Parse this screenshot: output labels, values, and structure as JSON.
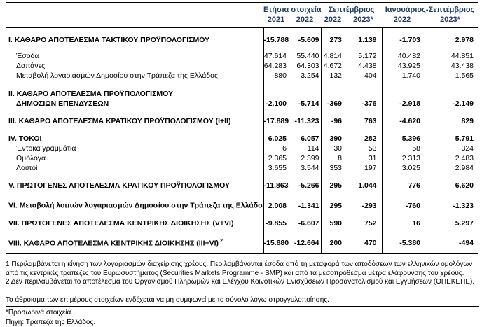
{
  "accent_color": "#1f3864",
  "table": {
    "col_groups": [
      {
        "label": "Ετήσια στοιχεία",
        "years": [
          "2021",
          "2022"
        ]
      },
      {
        "label": "Σεπτέμβριος",
        "years": [
          "2022",
          "2023*"
        ]
      },
      {
        "label": "Ιανουάριος-Σεπτέμβριος",
        "years": [
          "2022",
          "2023*"
        ]
      }
    ],
    "rows": [
      {
        "label": "I. ΚΑΘΑΡΟ ΑΠΟΤΕΛΕΣΜΑ ΤΑΚΤΙΚΟΥ ΠΡΟΫΠΟΛΟΓΙΣΜΟΥ",
        "bold": true,
        "gap": 11,
        "values": [
          "-15.788",
          "-5.609",
          "273",
          "1.139",
          "-1.703",
          "2.978"
        ]
      },
      {
        "label": "Έσοδα",
        "bold": false,
        "indent": true,
        "gap": 10,
        "values": [
          "47.614",
          "55.440",
          "4.814",
          "5.172",
          "40.482",
          "44.851"
        ]
      },
      {
        "label": "Δαπάνες",
        "bold": false,
        "indent": true,
        "values": [
          "64.283",
          "64.303",
          "4.672",
          "4.438",
          "43.925",
          "43.438"
        ]
      },
      {
        "label": "Μεταβολή λογαριασμών Δημοσίου στην Τράπεζα της Ελλάδος",
        "bold": false,
        "indent": true,
        "values": [
          "880",
          "3.254",
          "132",
          "404",
          "1.740",
          "1.565"
        ]
      },
      {
        "label": "II. ΚΑΘΑΡΟ ΑΠΟΤΕΛΕΣΜΑ ΠΡΟΫΠΟΛΟΓΙΣΜΟΥ",
        "bold": true,
        "gap": 13,
        "values": [
          "",
          "",
          "",
          "",
          "",
          ""
        ]
      },
      {
        "label": "ΔΗΜΟΣΙΩΝ ΕΠΕΝΔΥΣΕΩΝ",
        "bold": true,
        "indent": true,
        "values": [
          "-2.100",
          "-5.714",
          "-369",
          "-376",
          "-2.918",
          "-2.149"
        ]
      },
      {
        "label": "III. ΚΑΘΑΡΟ ΑΠΟΤΕΛΕΣΜΑ ΚΡΑΤΙΚΟΥ ΠΡΟΫΠΟΛΟΓΙΣΜΟΥ (I+II)",
        "bold": true,
        "gap": 12,
        "values": [
          "-17.889",
          "-11.323",
          "-96",
          "763",
          "-4.620",
          "829"
        ]
      },
      {
        "label": "IV. ΤΟΚΟΙ",
        "bold": true,
        "gap": 12,
        "values": [
          "6.025",
          "6.057",
          "390",
          "282",
          "5.396",
          "5.791"
        ]
      },
      {
        "label": "Έντοκα γραμμάτια",
        "bold": false,
        "indent": true,
        "values": [
          "6",
          "114",
          "30",
          "53",
          "58",
          "324"
        ]
      },
      {
        "label": "Ομόλογα",
        "bold": false,
        "indent": true,
        "values": [
          "2.365",
          "2.399",
          "8",
          "31",
          "2.313",
          "2.483"
        ]
      },
      {
        "label": "Λοιποί",
        "bold": false,
        "indent": true,
        "values": [
          "3.655",
          "3.544",
          "353",
          "197",
          "3.025",
          "2.984"
        ]
      },
      {
        "label": "V. ΠΡΩΤΟΓΕΝΕΣ ΑΠΟΤΕΛΕΣΜΑ ΚΡΑΤΙΚΟΥ ΠΡΟΫΠΟΛΟΓΙΣΜΟΥ",
        "bold": true,
        "gap": 12,
        "values": [
          "-11.863",
          "-5.266",
          "295",
          "1.044",
          "776",
          "6.620"
        ]
      },
      {
        "label": "VI. Μεταβολή λοιπών λογαριασμών Δημοσίου στην Τράπεζα της Ελλάδος",
        "sup": "1",
        "bold": true,
        "gap": 12,
        "values": [
          "2.008",
          "-1.341",
          "295",
          "-293",
          "-760",
          "-1.323"
        ]
      },
      {
        "label": "VII. ΠΡΩΤΟΓΕΝΕΣ ΑΠΟΤΕΛΕΣΜΑ ΚΕΝΤΡΙΚΗΣ ΔΙΟΙΚΗΣΗΣ (V+VI)",
        "bold": true,
        "gap": 12,
        "values": [
          "-9.855",
          "-6.607",
          "590",
          "752",
          "16",
          "5.297"
        ]
      },
      {
        "label": "VIII. ΚΑΘΑΡΟ ΑΠΟΤΕΛΕΣΜΑ ΚΕΝΤΡΙΚΗΣ ΔΙΟΙΚΗΣΗΣ (III+VI)",
        "sup": "2",
        "bold": true,
        "gap": 12,
        "values": [
          "-15.880",
          "-12.664",
          "200",
          "470",
          "-5.380",
          "-494"
        ]
      }
    ]
  },
  "footnotes": [
    "1 Περιλαμβάνεται η κίνηση των λογαριασμών διαχείρισης χρέους. Περιλαμβάνονται έσοδα από τη μεταφορά των αποδόσεων των ελληνικών ομολόγων από τις κεντρικές τράπεζες του Ευρωσυστήματος (Securities Markets Programme - SMP) και από τα μεσοπρόθεσμα μέτρα ελάφρυνσης του χρέους.",
    "2 Δεν περιλαμβάνεται το αποτέλεσμα του Οργανισμού Πληρωμών και Ελέγχου Κοινοτικών Ενισχύσεων Προσανατολισμού και Εγγυήσεων (ΟΠΕΚΕΠΕ)."
  ],
  "notes": {
    "rounding": "Το άθροισμα των επιμέρους στοιχείων ενδέχεται να μη συμφωνεί με το σύνολο λόγω στρογγυλοποίησης.",
    "provisional": "*Προσωρινά στοιχεία.",
    "source": "Πηγή: Τράπεζα της Ελλάδος."
  }
}
